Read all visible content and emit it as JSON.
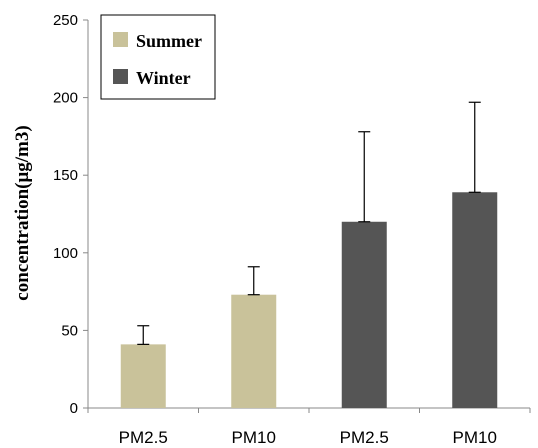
{
  "chart_data": {
    "type": "bar",
    "categories": [
      "PM2.5",
      "PM10",
      "PM2.5",
      "PM10"
    ],
    "series": [
      {
        "name": "Summer",
        "color": "#c9c29a",
        "values": [
          41,
          73,
          null,
          null
        ],
        "errors": [
          12,
          18,
          null,
          null
        ]
      },
      {
        "name": "Winter",
        "color": "#555555",
        "values": [
          null,
          null,
          120,
          139
        ],
        "errors": [
          null,
          null,
          58,
          58
        ]
      }
    ],
    "ylabel": "concentration(μg/m3)",
    "xlabel": "",
    "ylim": [
      0,
      250
    ],
    "yticks": [
      0,
      50,
      100,
      150,
      200,
      250
    ],
    "grid": false,
    "legend": "top-left"
  }
}
